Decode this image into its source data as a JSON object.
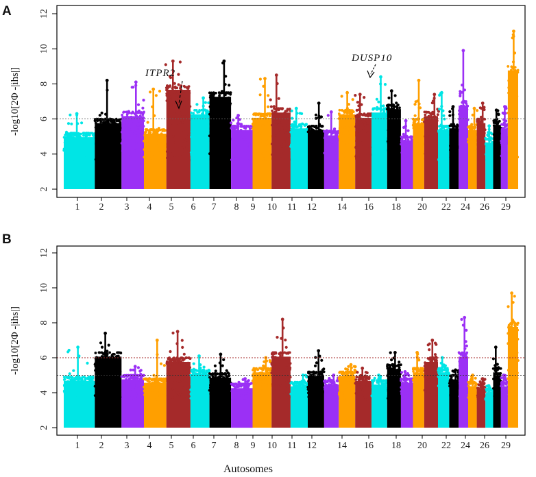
{
  "chart_data": [
    {
      "panel": "A",
      "type": "scatter",
      "subtype": "manhattan",
      "ylabel": "-log10[2Φ -|ihs|]",
      "xlabel": "",
      "ylim": [
        2,
        12
      ],
      "yticks": [
        2,
        4,
        6,
        8,
        10,
        12
      ],
      "thresholds": [
        {
          "value": 6,
          "color": "#666666",
          "style": "dotted"
        }
      ],
      "colors": [
        "#00e5e5",
        "#000000",
        "#9b30f5",
        "#ff9f00",
        "#a52a2a"
      ],
      "chromosome_labels": [
        "1",
        "2",
        "3",
        "4",
        "5",
        "6",
        "7",
        "8",
        "9",
        "10",
        "11",
        "12",
        "14",
        "16",
        "18",
        "20",
        "22",
        "24",
        "26",
        "29"
      ],
      "chromosomes": [
        {
          "chr": 1,
          "max": 6.3,
          "base": 5.2
        },
        {
          "chr": 2,
          "max": 8.2,
          "base": 6.0
        },
        {
          "chr": 3,
          "max": 8.1,
          "base": 6.4
        },
        {
          "chr": 4,
          "max": 7.7,
          "base": 5.4
        },
        {
          "chr": 5,
          "max": 9.3,
          "base": 7.9
        },
        {
          "chr": 6,
          "max": 7.2,
          "base": 6.5
        },
        {
          "chr": 7,
          "max": 9.3,
          "base": 7.5
        },
        {
          "chr": 8,
          "max": 6.2,
          "base": 5.6
        },
        {
          "chr": 9,
          "max": 8.3,
          "base": 6.3
        },
        {
          "chr": 10,
          "max": 8.5,
          "base": 6.6
        },
        {
          "chr": 11,
          "max": 6.6,
          "base": 5.7
        },
        {
          "chr": 12,
          "max": 6.9,
          "base": 5.6
        },
        {
          "chr": 13,
          "max": 6.4,
          "base": 5.3
        },
        {
          "chr": 14,
          "max": 7.5,
          "base": 6.5
        },
        {
          "chr": 15,
          "max": 7.4,
          "base": 6.3
        },
        {
          "chr": 16,
          "max": 8.4,
          "base": 6.6
        },
        {
          "chr": 17,
          "max": 7.6,
          "base": 6.8
        },
        {
          "chr": 18,
          "max": 5.9,
          "base": 5.0
        },
        {
          "chr": 19,
          "max": 8.2,
          "base": 6.0
        },
        {
          "chr": 20,
          "max": 7.4,
          "base": 6.4
        },
        {
          "chr": 21,
          "max": 7.5,
          "base": 5.6
        },
        {
          "chr": 22,
          "max": 6.7,
          "base": 5.7
        },
        {
          "chr": 23,
          "max": 9.9,
          "base": 7.0
        },
        {
          "chr": 24,
          "max": 6.6,
          "base": 5.6
        },
        {
          "chr": 25,
          "max": 6.9,
          "base": 6.0
        },
        {
          "chr": 26,
          "max": 5.6,
          "base": 4.9
        },
        {
          "chr": 27,
          "max": 6.5,
          "base": 5.9
        },
        {
          "chr": 28,
          "max": 6.7,
          "base": 5.7
        },
        {
          "chr": 29,
          "max": 11.0,
          "base": 9.0
        }
      ],
      "annotations": [
        {
          "text": "ITPR2",
          "chr": 5,
          "y": 6.6
        },
        {
          "text": "DUSP10",
          "chr": 16,
          "y": 8.2
        }
      ]
    },
    {
      "panel": "B",
      "type": "scatter",
      "subtype": "manhattan",
      "ylabel": "-log10[2Φ -|ihs|]",
      "xlabel": "Autosomes",
      "ylim": [
        2,
        12
      ],
      "yticks": [
        2,
        4,
        6,
        8,
        10,
        12
      ],
      "thresholds": [
        {
          "value": 6,
          "color": "#a52a2a",
          "style": "dotted"
        },
        {
          "value": 5,
          "color": "#333333",
          "style": "dotted"
        }
      ],
      "colors": [
        "#00e5e5",
        "#000000",
        "#9b30f5",
        "#ff9f00",
        "#a52a2a"
      ],
      "chromosome_labels": [
        "1",
        "2",
        "3",
        "4",
        "5",
        "6",
        "7",
        "8",
        "9",
        "10",
        "11",
        "12",
        "14",
        "16",
        "18",
        "20",
        "22",
        "24",
        "26",
        "29"
      ],
      "chromosomes": [
        {
          "chr": 1,
          "max": 6.6,
          "base": 4.9
        },
        {
          "chr": 2,
          "max": 7.4,
          "base": 6.3
        },
        {
          "chr": 3,
          "max": 5.5,
          "base": 5.0
        },
        {
          "chr": 4,
          "max": 7.0,
          "base": 4.8
        },
        {
          "chr": 5,
          "max": 7.5,
          "base": 6.0
        },
        {
          "chr": 6,
          "max": 6.1,
          "base": 5.3
        },
        {
          "chr": 7,
          "max": 6.2,
          "base": 5.1
        },
        {
          "chr": 8,
          "max": 4.8,
          "base": 4.5
        },
        {
          "chr": 9,
          "max": 6.0,
          "base": 5.4
        },
        {
          "chr": 10,
          "max": 8.2,
          "base": 6.3
        },
        {
          "chr": 11,
          "max": 5.0,
          "base": 4.6
        },
        {
          "chr": 12,
          "max": 6.4,
          "base": 5.2
        },
        {
          "chr": 13,
          "max": 5.0,
          "base": 4.7
        },
        {
          "chr": 14,
          "max": 5.6,
          "base": 5.2
        },
        {
          "chr": 15,
          "max": 5.4,
          "base": 4.9
        },
        {
          "chr": 16,
          "max": 5.0,
          "base": 4.7
        },
        {
          "chr": 17,
          "max": 6.3,
          "base": 5.6
        },
        {
          "chr": 18,
          "max": 5.2,
          "base": 4.8
        },
        {
          "chr": 19,
          "max": 6.3,
          "base": 5.4
        },
        {
          "chr": 20,
          "max": 7.0,
          "base": 6.0
        },
        {
          "chr": 21,
          "max": 6.0,
          "base": 5.4
        },
        {
          "chr": 22,
          "max": 5.3,
          "base": 5.0
        },
        {
          "chr": 23,
          "max": 8.3,
          "base": 6.3
        },
        {
          "chr": 24,
          "max": 5.0,
          "base": 4.6
        },
        {
          "chr": 25,
          "max": 4.8,
          "base": 4.5
        },
        {
          "chr": 26,
          "max": 4.4,
          "base": 4.2
        },
        {
          "chr": 27,
          "max": 6.6,
          "base": 5.4
        },
        {
          "chr": 28,
          "max": 5.0,
          "base": 4.6
        },
        {
          "chr": 29,
          "max": 9.7,
          "base": 8.0
        }
      ],
      "annotations": []
    }
  ]
}
